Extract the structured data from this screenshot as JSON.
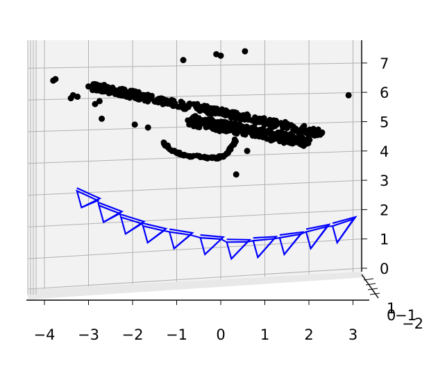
{
  "chart_data": {
    "type": "scatter3d",
    "title": "",
    "xlabel": "",
    "ylabel": "",
    "zlabel": "",
    "x_ticks": [
      "−4",
      "−3",
      "−2",
      "−1",
      "0",
      "1",
      "2",
      "3"
    ],
    "x_tick_values": [
      -4,
      -3,
      -2,
      -1,
      0,
      1,
      2,
      3
    ],
    "z_ticks": [
      "0",
      "1",
      "2",
      "3",
      "4",
      "5",
      "6",
      "7"
    ],
    "z_tick_values": [
      0,
      1,
      2,
      3,
      4,
      5,
      6,
      7
    ],
    "y_ticks": [
      "1",
      "0",
      "−1",
      "−2"
    ],
    "y_tick_values": [
      1,
      0,
      -1,
      -2
    ],
    "xlim": [
      -4.2,
      3.1
    ],
    "zlim": [
      -0.3,
      7.7
    ],
    "grid": true,
    "colors": {
      "points": "#000000",
      "cameras": "#0000ff",
      "pane": "#f2f2f2",
      "grid": "#b0b0b0"
    },
    "point_cloud": {
      "name": "",
      "outliers": [
        [
          -3.8,
          6.4
        ],
        [
          -3.75,
          6.45
        ],
        [
          -3.4,
          5.8
        ],
        [
          -3.35,
          5.9
        ],
        [
          -3.25,
          5.85
        ],
        [
          -3.0,
          6.2
        ],
        [
          -2.85,
          5.6
        ],
        [
          -2.75,
          5.7
        ],
        [
          -2.7,
          5.1
        ],
        [
          -1.95,
          4.9
        ],
        [
          -1.65,
          4.8
        ],
        [
          -0.85,
          7.1
        ],
        [
          -0.1,
          7.3
        ],
        [
          0.0,
          7.25
        ],
        [
          0.55,
          7.4
        ],
        [
          0.35,
          3.2
        ],
        [
          0.6,
          4.0
        ],
        [
          2.9,
          5.9
        ]
      ],
      "band_upper": [
        [
          -2.9,
          6.2
        ],
        [
          2.3,
          4.6
        ]
      ],
      "band_lower": [
        [
          -1.6,
          5.3
        ],
        [
          2.0,
          4.3
        ]
      ],
      "hook": [
        [
          -1.3,
          4.3
        ],
        [
          -1.1,
          4.0
        ],
        [
          -0.8,
          3.85
        ],
        [
          -0.4,
          3.8
        ],
        [
          -0.1,
          3.75
        ],
        [
          0.1,
          3.85
        ],
        [
          0.25,
          4.1
        ],
        [
          0.35,
          4.4
        ]
      ]
    },
    "cameras": {
      "name": "",
      "count": 11,
      "trajectory": [
        [
          -3.2,
          2.3
        ],
        [
          -2.7,
          1.8
        ],
        [
          -2.2,
          1.4
        ],
        [
          -1.7,
          1.1
        ],
        [
          -1.1,
          0.9
        ],
        [
          -0.4,
          0.7
        ],
        [
          0.2,
          0.55
        ],
        [
          0.8,
          0.6
        ],
        [
          1.4,
          0.7
        ],
        [
          2.0,
          0.9
        ],
        [
          2.6,
          1.1
        ]
      ]
    }
  }
}
